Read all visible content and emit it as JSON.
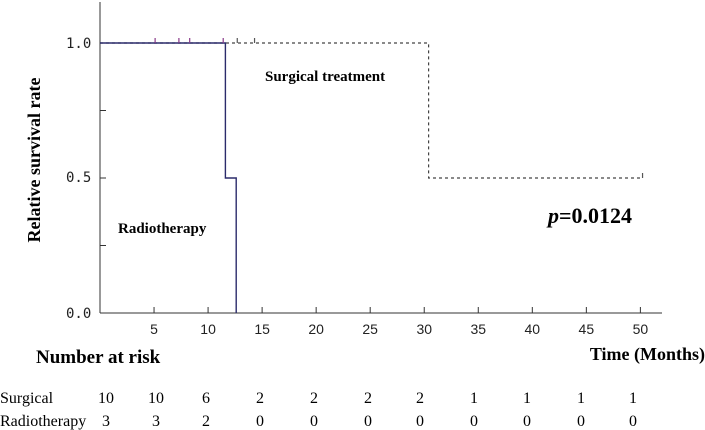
{
  "chart_data": {
    "type": "line",
    "title": "",
    "xlabel": "Time (Months)",
    "ylabel": "Relative survival rate",
    "xlim": [
      0,
      52
    ],
    "ylim": [
      0,
      1
    ],
    "x_ticks": [
      5,
      10,
      15,
      20,
      25,
      30,
      35,
      40,
      45,
      50
    ],
    "x_tick_labels": [
      "5",
      "10",
      "15",
      "20",
      "25",
      "30",
      "35",
      "40",
      "45",
      "50"
    ],
    "y_ticks": [
      0,
      0.5,
      1
    ],
    "y_tick_labels": [
      "0.0",
      "0.5",
      "1.0"
    ],
    "series": [
      {
        "name": "Surgical treatment",
        "style": "dashed",
        "color": "#444444",
        "steps": [
          [
            0,
            1.0
          ],
          [
            30.4,
            1.0
          ],
          [
            30.4,
            0.5
          ],
          [
            50.2,
            0.5
          ]
        ],
        "censor_x": [
          12.7,
          14.3,
          50.2
        ]
      },
      {
        "name": "Radiotherapy",
        "style": "solid",
        "color": "#2b2b6b",
        "steps": [
          [
            0,
            1.0
          ],
          [
            11.6,
            1.0
          ],
          [
            11.6,
            0.5
          ],
          [
            12.6,
            0.5
          ],
          [
            12.6,
            0.0
          ]
        ],
        "censor_x": [
          5.1,
          7.3,
          8.3,
          11.4
        ]
      }
    ],
    "annotations": {
      "surgical_label": "Surgical treatment",
      "radio_label": "Radiotherapy",
      "p_prefix": "p",
      "p_value": "=0.0124"
    }
  },
  "risk_table": {
    "title": "Number at risk",
    "rows": [
      {
        "label": "Surgical",
        "values": [
          "10",
          "10",
          "6",
          "2",
          "2",
          "2",
          "2",
          "1",
          "1",
          "1",
          "1"
        ]
      },
      {
        "label": "Radiotherapy",
        "values": [
          "3",
          "3",
          "2",
          "0",
          "0",
          "0",
          "0",
          "0",
          "0",
          "0",
          "0"
        ]
      }
    ]
  }
}
